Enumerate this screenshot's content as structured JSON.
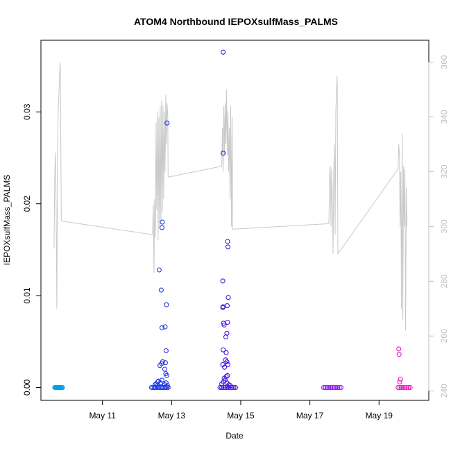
{
  "chart_data": {
    "type": "scatter",
    "title": "ATOM4 Northbound IEPOXsulfMass_PALMS",
    "xlabel": "Date",
    "ylabel": "IEPOXsulfMass_PALMS",
    "x_ticks": [
      {
        "day": 11,
        "label": "May 11"
      },
      {
        "day": 13,
        "label": "May 13"
      },
      {
        "day": 15,
        "label": "May 15"
      },
      {
        "day": 17,
        "label": "May 17"
      },
      {
        "day": 19,
        "label": "May 19"
      }
    ],
    "y_ticks": [
      0.0,
      0.01,
      0.02,
      0.03
    ],
    "y_tick_labels": [
      "0.00",
      "0.01",
      "0.02",
      "0.03"
    ],
    "y2_ticks": [
      240,
      260,
      280,
      300,
      320,
      340,
      360
    ],
    "y2_tick_labels": [
      "240",
      "260",
      "280",
      "300",
      "320",
      "340",
      "360"
    ],
    "xlim": [
      9.22,
      20.44
    ],
    "ylim": [
      -0.0014,
      0.0378
    ],
    "y2lim": [
      236.5,
      368.0
    ],
    "grid": false,
    "legend": "none",
    "colors": {
      "line": "#c8c8c8",
      "right_axis": "#bdbdbd",
      "point_gradient": [
        "#00a8e8",
        "#1e5be6",
        "#2a14dc",
        "#6b10f0",
        "#9a10ff",
        "#ff10c8"
      ]
    },
    "series": [
      {
        "marker": "open-circle",
        "points": [
          [
            9.62,
            0
          ],
          [
            9.64,
            0
          ],
          [
            9.66,
            0
          ],
          [
            9.68,
            0
          ],
          [
            9.7,
            0
          ],
          [
            9.72,
            0
          ],
          [
            9.74,
            0
          ],
          [
            9.76,
            0
          ],
          [
            9.78,
            0
          ],
          [
            9.8,
            0
          ],
          [
            9.82,
            0
          ],
          [
            9.84,
            0
          ],
          [
            12.42,
            0
          ],
          [
            12.46,
            0
          ],
          [
            12.5,
            0
          ],
          [
            12.54,
            0
          ],
          [
            12.58,
            0
          ],
          [
            12.62,
            0
          ],
          [
            12.66,
            0
          ],
          [
            12.7,
            0
          ],
          [
            12.74,
            0
          ],
          [
            12.78,
            0
          ],
          [
            12.82,
            0
          ],
          [
            12.86,
            0
          ],
          [
            12.9,
            0
          ],
          [
            12.52,
            0.0003
          ],
          [
            12.55,
            0.0004
          ],
          [
            12.6,
            0.0006
          ],
          [
            12.62,
            0.0007
          ],
          [
            12.58,
            0.0002
          ],
          [
            12.68,
            0.0005
          ],
          [
            12.72,
            0.0008
          ],
          [
            12.8,
            0.0003
          ],
          [
            12.84,
            0.0005
          ],
          [
            12.88,
            0.0002
          ],
          [
            12.66,
            0.0024
          ],
          [
            12.71,
            0.0026
          ],
          [
            12.74,
            0.0028
          ],
          [
            12.82,
            0.0027
          ],
          [
            12.84,
            0.004
          ],
          [
            12.72,
            0.0065
          ],
          [
            12.81,
            0.0066
          ],
          [
            12.64,
            0.0128
          ],
          [
            12.7,
            0.0106
          ],
          [
            12.85,
            0.009
          ],
          [
            12.8,
            0.002
          ],
          [
            12.83,
            0.0015
          ],
          [
            12.86,
            0.0013
          ],
          [
            12.72,
            0.0174
          ],
          [
            12.73,
            0.018
          ],
          [
            12.87,
            0.0288
          ],
          [
            14.4,
            0
          ],
          [
            14.45,
            0
          ],
          [
            14.5,
            0
          ],
          [
            14.55,
            0
          ],
          [
            14.6,
            0
          ],
          [
            14.65,
            0
          ],
          [
            14.7,
            0
          ],
          [
            14.75,
            0
          ],
          [
            14.8,
            0
          ],
          [
            14.85,
            0
          ],
          [
            14.45,
            0.0004
          ],
          [
            14.5,
            0.0006
          ],
          [
            14.52,
            0.001
          ],
          [
            14.55,
            0.0008
          ],
          [
            14.58,
            0.0012
          ],
          [
            14.6,
            0.0005
          ],
          [
            14.62,
            0.0013
          ],
          [
            14.66,
            0.0003
          ],
          [
            14.7,
            0.0002
          ],
          [
            14.48,
            0.0025
          ],
          [
            14.53,
            0.0022
          ],
          [
            14.56,
            0.003
          ],
          [
            14.6,
            0.0028
          ],
          [
            14.63,
            0.0025
          ],
          [
            14.58,
            0.0038
          ],
          [
            14.49,
            0.0041
          ],
          [
            14.5,
            0.007
          ],
          [
            14.62,
            0.0071
          ],
          [
            14.57,
            0.0055
          ],
          [
            14.6,
            0.0059
          ],
          [
            14.52,
            0.0068
          ],
          [
            14.48,
            0.0087
          ],
          [
            14.49,
            0.0088
          ],
          [
            14.61,
            0.0089
          ],
          [
            14.64,
            0.0098
          ],
          [
            14.48,
            0.0116
          ],
          [
            14.63,
            0.0153
          ],
          [
            14.62,
            0.0159
          ],
          [
            14.49,
            0.0255
          ],
          [
            14.49,
            0.0365
          ],
          [
            17.4,
            0
          ],
          [
            17.45,
            0
          ],
          [
            17.5,
            0
          ],
          [
            17.55,
            0
          ],
          [
            17.6,
            0
          ],
          [
            17.65,
            0
          ],
          [
            17.7,
            0
          ],
          [
            17.75,
            0
          ],
          [
            17.8,
            0
          ],
          [
            17.85,
            0
          ],
          [
            17.9,
            0
          ],
          [
            19.55,
            0
          ],
          [
            19.6,
            0
          ],
          [
            19.65,
            0
          ],
          [
            19.7,
            0
          ],
          [
            19.75,
            0
          ],
          [
            19.8,
            0
          ],
          [
            19.85,
            0
          ],
          [
            19.9,
            0
          ],
          [
            19.6,
            0.0006
          ],
          [
            19.62,
            0.0009
          ],
          [
            19.58,
            0.0036
          ],
          [
            19.57,
            0.0042
          ]
        ]
      },
      {
        "marker": "line",
        "axis": "right",
        "points": [
          [
            9.6,
            292
          ],
          [
            9.62,
            318
          ],
          [
            9.64,
            327
          ],
          [
            9.66,
            308
          ],
          [
            9.68,
            270
          ],
          [
            9.7,
            325
          ],
          [
            9.72,
            342
          ],
          [
            9.74,
            348
          ],
          [
            9.76,
            356
          ],
          [
            9.78,
            360
          ],
          [
            9.81,
            302
          ],
          [
            12.45,
            297
          ],
          [
            12.47,
            308
          ],
          [
            12.49,
            283
          ],
          [
            12.51,
            310
          ],
          [
            12.53,
            296
          ],
          [
            12.55,
            338
          ],
          [
            12.57,
            306
          ],
          [
            12.59,
            342
          ],
          [
            12.61,
            295
          ],
          [
            12.63,
            340
          ],
          [
            12.65,
            300
          ],
          [
            12.67,
            344
          ],
          [
            12.69,
            302
          ],
          [
            12.71,
            346
          ],
          [
            12.73,
            305
          ],
          [
            12.75,
            344
          ],
          [
            12.77,
            310
          ],
          [
            12.79,
            342
          ],
          [
            12.81,
            320
          ],
          [
            12.83,
            348
          ],
          [
            12.85,
            330
          ],
          [
            12.87,
            345
          ],
          [
            12.89,
            340
          ],
          [
            12.9,
            318
          ],
          [
            14.45,
            322
          ],
          [
            14.47,
            336
          ],
          [
            14.49,
            320
          ],
          [
            14.51,
            344
          ],
          [
            14.53,
            326
          ],
          [
            14.55,
            345
          ],
          [
            14.57,
            330
          ],
          [
            14.59,
            350
          ],
          [
            14.61,
            326
          ],
          [
            14.63,
            342
          ],
          [
            14.65,
            320
          ],
          [
            14.67,
            336
          ],
          [
            14.69,
            310
          ],
          [
            14.71,
            344
          ],
          [
            14.73,
            300
          ],
          [
            14.75,
            340
          ],
          [
            14.77,
            299
          ],
          [
            17.55,
            301
          ],
          [
            17.57,
            318
          ],
          [
            17.59,
            322
          ],
          [
            17.61,
            300
          ],
          [
            17.63,
            321
          ],
          [
            17.65,
            312
          ],
          [
            17.67,
            290
          ],
          [
            17.69,
            320
          ],
          [
            17.71,
            330
          ],
          [
            17.73,
            297
          ],
          [
            17.75,
            342
          ],
          [
            17.77,
            350
          ],
          [
            17.79,
            355
          ],
          [
            17.81,
            290
          ],
          [
            19.55,
            321
          ],
          [
            19.57,
            330
          ],
          [
            19.59,
            326
          ],
          [
            19.61,
            300
          ],
          [
            19.63,
            320
          ],
          [
            19.65,
            270
          ],
          [
            19.67,
            334
          ],
          [
            19.69,
            266
          ],
          [
            19.71,
            322
          ],
          [
            19.73,
            300
          ],
          [
            19.75,
            321
          ],
          [
            19.77,
            262
          ],
          [
            19.79,
            314
          ],
          [
            19.81,
            300
          ]
        ]
      }
    ]
  }
}
